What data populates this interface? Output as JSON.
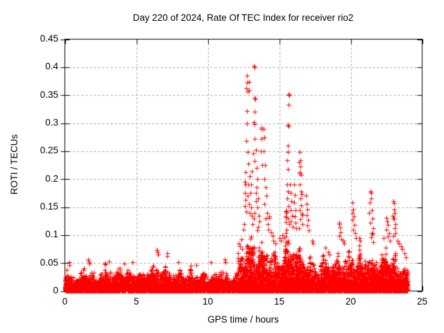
{
  "chart_data": {
    "type": "scatter",
    "title": "Day 220 of 2024, Rate Of TEC Index for receiver rio2",
    "xlabel": "GPS time / hours",
    "ylabel": "ROTI / TECUs",
    "x_axis": {
      "min": 0,
      "max": 25,
      "ticks": [
        {
          "v": 0,
          "label": "0"
        },
        {
          "v": 5,
          "label": "5"
        },
        {
          "v": 10,
          "label": "10"
        },
        {
          "v": 15,
          "label": "15"
        },
        {
          "v": 20,
          "label": "20"
        },
        {
          "v": 25,
          "label": "25"
        }
      ]
    },
    "y_axis": {
      "min": 0,
      "max": 0.45,
      "ticks": [
        {
          "v": 0,
          "label": "0"
        },
        {
          "v": 0.05,
          "label": "0.05"
        },
        {
          "v": 0.1,
          "label": "0.1"
        },
        {
          "v": 0.15,
          "label": "0.15"
        },
        {
          "v": 0.2,
          "label": "0.2"
        },
        {
          "v": 0.25,
          "label": "0.25"
        },
        {
          "v": 0.3,
          "label": "0.3"
        },
        {
          "v": 0.35,
          "label": "0.35"
        },
        {
          "v": 0.4,
          "label": "0.4"
        },
        {
          "v": 0.45,
          "label": "0.45"
        }
      ]
    },
    "grid": {
      "on": true,
      "color": "#a4a4a4",
      "dash": [
        3,
        3
      ]
    },
    "marker": {
      "shape": "plus",
      "size": 7,
      "color": "#ff0000"
    },
    "frame_color": "#000000",
    "data_time_range_hours": [
      0,
      24
    ],
    "seed": 20240813,
    "density": {
      "column_width_hours": 0.05,
      "base_points_per_column": 6,
      "points_per_env_unit": 170,
      "floor_points": 4,
      "floor_level": 0.015
    },
    "envelope_bin_hours": 0.5,
    "envelope_max_roti": [
      0.045,
      0.03,
      0.036,
      0.048,
      0.035,
      0.04,
      0.045,
      0.036,
      0.042,
      0.045,
      0.038,
      0.042,
      0.055,
      0.048,
      0.052,
      0.04,
      0.045,
      0.038,
      0.04,
      0.045,
      0.042,
      0.038,
      0.046,
      0.032,
      0.055,
      0.095,
      0.125,
      0.115,
      0.085,
      0.075,
      0.08,
      0.125,
      0.105,
      0.095,
      0.065,
      0.055,
      0.065,
      0.06,
      0.085,
      0.075,
      0.095,
      0.075,
      0.085,
      0.07,
      0.08,
      0.09,
      0.075,
      0.058
    ],
    "spike_points": [
      [
        0.3,
        0.051
      ],
      [
        0.33,
        0.047
      ],
      [
        1.63,
        0.057
      ],
      [
        1.68,
        0.053
      ],
      [
        1.72,
        0.049
      ],
      [
        3.08,
        0.053
      ],
      [
        4.15,
        0.049
      ],
      [
        4.72,
        0.051
      ],
      [
        6.44,
        0.074
      ],
      [
        6.48,
        0.07
      ],
      [
        6.52,
        0.065
      ],
      [
        7.14,
        0.068
      ],
      [
        7.18,
        0.062
      ],
      [
        7.92,
        0.052
      ],
      [
        9.22,
        0.047
      ],
      [
        10.2,
        0.051
      ],
      [
        11.2,
        0.056
      ],
      [
        11.25,
        0.051
      ],
      [
        12.18,
        0.085
      ],
      [
        12.25,
        0.08
      ],
      [
        12.35,
        0.092
      ],
      [
        12.42,
        0.075
      ],
      [
        12.5,
        0.11
      ],
      [
        12.55,
        0.12
      ],
      [
        12.6,
        0.195
      ],
      [
        12.63,
        0.213
      ],
      [
        12.66,
        0.19
      ],
      [
        12.62,
        0.175
      ],
      [
        12.65,
        0.163
      ],
      [
        12.6,
        0.152
      ],
      [
        12.68,
        0.142
      ],
      [
        12.72,
        0.385
      ],
      [
        12.75,
        0.373
      ],
      [
        12.7,
        0.362
      ],
      [
        12.77,
        0.357
      ],
      [
        12.88,
        0.374
      ],
      [
        12.9,
        0.359
      ],
      [
        12.73,
        0.322
      ],
      [
        12.74,
        0.3
      ],
      [
        12.7,
        0.268
      ],
      [
        12.78,
        0.249
      ],
      [
        12.82,
        0.228
      ],
      [
        12.85,
        0.19
      ],
      [
        12.8,
        0.17
      ],
      [
        12.9,
        0.155
      ],
      [
        12.95,
        0.205
      ],
      [
        12.92,
        0.14
      ],
      [
        13.0,
        0.175
      ],
      [
        13.05,
        0.19
      ],
      [
        13.1,
        0.214
      ],
      [
        13.05,
        0.15
      ],
      [
        13.15,
        0.12
      ],
      [
        13.1,
        0.135
      ],
      [
        13.25,
        0.402
      ],
      [
        13.3,
        0.4
      ],
      [
        13.3,
        0.345
      ],
      [
        13.33,
        0.343
      ],
      [
        13.28,
        0.321
      ],
      [
        13.26,
        0.298
      ],
      [
        13.22,
        0.302
      ],
      [
        13.3,
        0.272
      ],
      [
        13.35,
        0.252
      ],
      [
        13.2,
        0.246
      ],
      [
        13.28,
        0.232
      ],
      [
        13.4,
        0.22
      ],
      [
        13.45,
        0.2
      ],
      [
        13.42,
        0.185
      ],
      [
        13.38,
        0.175
      ],
      [
        13.5,
        0.165
      ],
      [
        13.35,
        0.16
      ],
      [
        13.48,
        0.15
      ],
      [
        13.3,
        0.14
      ],
      [
        13.55,
        0.135
      ],
      [
        13.25,
        0.13
      ],
      [
        13.6,
        0.125
      ],
      [
        13.52,
        0.115
      ],
      [
        13.45,
        0.108
      ],
      [
        13.76,
        0.292
      ],
      [
        13.78,
        0.29
      ],
      [
        13.77,
        0.272
      ],
      [
        13.73,
        0.25
      ],
      [
        13.8,
        0.225
      ],
      [
        13.92,
        0.29
      ],
      [
        13.95,
        0.275
      ],
      [
        13.9,
        0.25
      ],
      [
        14.0,
        0.225
      ],
      [
        13.97,
        0.2
      ],
      [
        14.05,
        0.185
      ],
      [
        14.1,
        0.17
      ],
      [
        13.95,
        0.155
      ],
      [
        14.15,
        0.14
      ],
      [
        14.05,
        0.13
      ],
      [
        14.2,
        0.12
      ],
      [
        14.28,
        0.133
      ],
      [
        14.32,
        0.131
      ],
      [
        14.25,
        0.11
      ],
      [
        14.45,
        0.105
      ],
      [
        14.52,
        0.098
      ],
      [
        14.6,
        0.09
      ],
      [
        14.75,
        0.085
      ],
      [
        15.0,
        0.095
      ],
      [
        15.1,
        0.09
      ],
      [
        15.2,
        0.1
      ],
      [
        15.3,
        0.095
      ],
      [
        15.65,
        0.352
      ],
      [
        15.68,
        0.35
      ],
      [
        15.67,
        0.333
      ],
      [
        15.63,
        0.297
      ],
      [
        15.66,
        0.295
      ],
      [
        15.6,
        0.26
      ],
      [
        15.62,
        0.249
      ],
      [
        15.57,
        0.234
      ],
      [
        15.6,
        0.218
      ],
      [
        15.55,
        0.19
      ],
      [
        15.62,
        0.178
      ],
      [
        15.57,
        0.165
      ],
      [
        15.65,
        0.152
      ],
      [
        15.53,
        0.14
      ],
      [
        15.6,
        0.13
      ],
      [
        15.68,
        0.12
      ],
      [
        15.5,
        0.11
      ],
      [
        15.75,
        0.19
      ],
      [
        15.8,
        0.175
      ],
      [
        15.85,
        0.16
      ],
      [
        15.78,
        0.145
      ],
      [
        15.9,
        0.135
      ],
      [
        15.82,
        0.125
      ],
      [
        15.95,
        0.115
      ],
      [
        16.05,
        0.19
      ],
      [
        16.1,
        0.172
      ],
      [
        16.02,
        0.158
      ],
      [
        16.12,
        0.145
      ],
      [
        16.07,
        0.133
      ],
      [
        16.15,
        0.122
      ],
      [
        16.2,
        0.112
      ],
      [
        16.37,
        0.23
      ],
      [
        16.45,
        0.249
      ],
      [
        16.5,
        0.234
      ],
      [
        16.47,
        0.222
      ],
      [
        16.42,
        0.212
      ],
      [
        16.44,
        0.21
      ],
      [
        16.55,
        0.208
      ],
      [
        16.45,
        0.19
      ],
      [
        16.52,
        0.178
      ],
      [
        16.6,
        0.173
      ],
      [
        16.48,
        0.165
      ],
      [
        16.55,
        0.153
      ],
      [
        16.43,
        0.145
      ],
      [
        16.6,
        0.138
      ],
      [
        16.62,
        0.136
      ],
      [
        16.5,
        0.128
      ],
      [
        16.65,
        0.12
      ],
      [
        16.4,
        0.112
      ],
      [
        16.88,
        0.17
      ],
      [
        16.92,
        0.156
      ],
      [
        16.97,
        0.146
      ],
      [
        16.9,
        0.136
      ],
      [
        17.0,
        0.127
      ],
      [
        16.95,
        0.117
      ],
      [
        17.05,
        0.108
      ],
      [
        17.3,
        0.09
      ],
      [
        17.35,
        0.085
      ],
      [
        18.25,
        0.078
      ],
      [
        18.4,
        0.07
      ],
      [
        18.52,
        0.065
      ],
      [
        19.18,
        0.122
      ],
      [
        19.2,
        0.12
      ],
      [
        19.25,
        0.113
      ],
      [
        19.3,
        0.105
      ],
      [
        19.22,
        0.098
      ],
      [
        19.35,
        0.092
      ],
      [
        19.5,
        0.09
      ],
      [
        19.55,
        0.085
      ],
      [
        20.1,
        0.158
      ],
      [
        20.15,
        0.146
      ],
      [
        20.12,
        0.14
      ],
      [
        20.2,
        0.133
      ],
      [
        20.1,
        0.127
      ],
      [
        20.25,
        0.118
      ],
      [
        20.18,
        0.11
      ],
      [
        20.3,
        0.103
      ],
      [
        20.35,
        0.095
      ],
      [
        20.6,
        0.095
      ],
      [
        20.65,
        0.09
      ],
      [
        21.38,
        0.178
      ],
      [
        21.42,
        0.176
      ],
      [
        21.45,
        0.166
      ],
      [
        21.35,
        0.158
      ],
      [
        21.5,
        0.145
      ],
      [
        21.3,
        0.14
      ],
      [
        21.55,
        0.13
      ],
      [
        21.4,
        0.122
      ],
      [
        21.6,
        0.112
      ],
      [
        21.48,
        0.104
      ],
      [
        21.52,
        0.102
      ],
      [
        21.44,
        0.096
      ],
      [
        21.56,
        0.088
      ],
      [
        22.3,
        0.095
      ],
      [
        22.5,
        0.131
      ],
      [
        22.55,
        0.124
      ],
      [
        22.6,
        0.118
      ],
      [
        22.52,
        0.11
      ],
      [
        22.68,
        0.104
      ],
      [
        22.58,
        0.097
      ],
      [
        22.72,
        0.09
      ],
      [
        23.0,
        0.161
      ],
      [
        23.05,
        0.157
      ],
      [
        23.02,
        0.146
      ],
      [
        23.1,
        0.14
      ],
      [
        22.95,
        0.134
      ],
      [
        23.0,
        0.13
      ],
      [
        23.03,
        0.129
      ],
      [
        23.12,
        0.12
      ],
      [
        23.08,
        0.112
      ],
      [
        23.15,
        0.104
      ],
      [
        22.97,
        0.098
      ],
      [
        23.3,
        0.09
      ],
      [
        23.35,
        0.085
      ],
      [
        23.5,
        0.08
      ],
      [
        23.6,
        0.075
      ],
      [
        23.75,
        0.068
      ],
      [
        23.85,
        0.06
      ]
    ]
  }
}
